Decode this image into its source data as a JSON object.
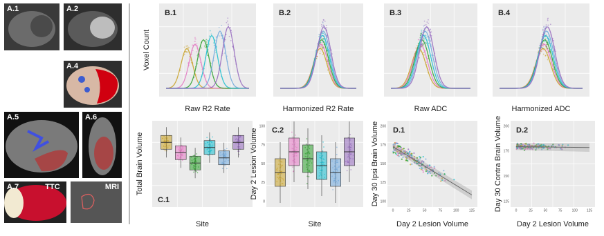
{
  "images": [
    {
      "label": "A.1"
    },
    {
      "label": "A.2"
    },
    {
      "label": "A.4"
    },
    {
      "label": "A.5"
    },
    {
      "label": "A.6"
    },
    {
      "label": "A.7",
      "left_tag": "TTC",
      "right_tag": "MRI"
    }
  ],
  "plots": [
    {
      "label": "B.1",
      "x_label": "Raw R2 Rate",
      "y_label": "Voxel Count"
    },
    {
      "label": "B.2",
      "x_label": "Harmonized R2 Rate"
    },
    {
      "label": "B.3",
      "x_label": "Raw ADC"
    },
    {
      "label": "B.4",
      "x_label": "Harmonized ADC"
    },
    {
      "label": "C.1",
      "x_label": "Site",
      "y_label": "Total Brain Volume"
    },
    {
      "label": "C.2",
      "x_label": "Site",
      "y_label": "Day 2 Lesion Volume",
      "y_ticks": [
        0,
        25,
        50,
        75,
        100
      ]
    },
    {
      "label": "D.1",
      "x_label": "Day 2 Lesion Volume",
      "y_label": "Day 30 Ipsi Brain Volume",
      "x_ticks": [
        0,
        25,
        50,
        75,
        100,
        125
      ],
      "y_ticks": [
        100,
        125,
        150,
        175,
        200
      ]
    },
    {
      "label": "D.2",
      "x_label": "Day 2 Lesion Volume",
      "y_label": "Day 30 Contra Brain Volume",
      "x_ticks": [
        0,
        25,
        50,
        75,
        100,
        125
      ],
      "y_ticks": [
        125,
        150,
        175,
        200
      ]
    }
  ]
}
